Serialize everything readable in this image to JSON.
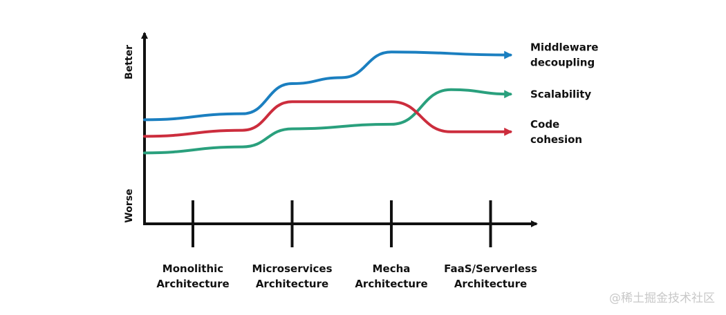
{
  "chart_data": {
    "type": "line",
    "title": "",
    "xlabel": "",
    "ylabel_low": "Worse",
    "ylabel_high": "Better",
    "categories": [
      [
        "Monolithic",
        "Architecture"
      ],
      [
        "Microservices",
        "Architecture"
      ],
      [
        "Mecha",
        "Architecture"
      ],
      [
        "FaaS/Serverless",
        "Architecture"
      ]
    ],
    "ylim": [
      0,
      100
    ],
    "grid": false,
    "legend": "right",
    "series": [
      {
        "name": [
          "Middleware",
          "decoupling"
        ],
        "color": "#1b7fc0",
        "points": [
          [
            0.0,
            48
          ],
          [
            0.5,
            52
          ],
          [
            1.0,
            72
          ],
          [
            1.5,
            76
          ],
          [
            2.0,
            93
          ],
          [
            3.2,
            91
          ]
        ]
      },
      {
        "name": [
          "Scalability"
        ],
        "color": "#2aa07d",
        "points": [
          [
            0.0,
            26
          ],
          [
            0.5,
            30
          ],
          [
            1.0,
            42
          ],
          [
            2.0,
            45
          ],
          [
            2.6,
            68
          ],
          [
            3.2,
            65
          ]
        ]
      },
      {
        "name": [
          "Code",
          "cohesion"
        ],
        "color": "#cc2d3d",
        "points": [
          [
            0.0,
            37
          ],
          [
            0.5,
            41
          ],
          [
            1.0,
            60
          ],
          [
            2.0,
            60
          ],
          [
            2.6,
            40
          ],
          [
            3.2,
            40
          ]
        ]
      }
    ]
  },
  "watermark": "@稀土掘金技术社区"
}
